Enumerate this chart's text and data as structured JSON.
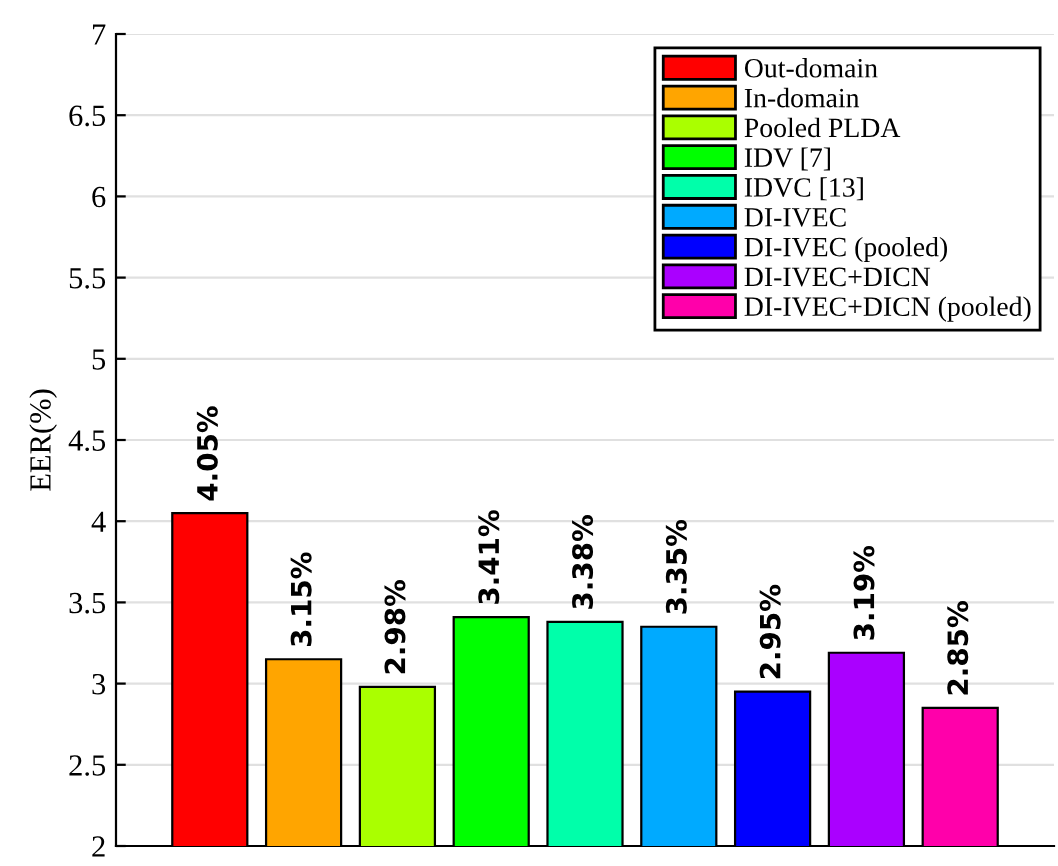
{
  "chart_data": {
    "type": "bar",
    "ylabel": "EER(%)",
    "categories": [
      null,
      null,
      null,
      null,
      null,
      null,
      null,
      null,
      null
    ],
    "series": [
      {
        "name": "Out-domain",
        "color": "#ff0000",
        "values": [
          4.05,
          null,
          null,
          null,
          null,
          null,
          null,
          null,
          null
        ],
        "value_labels": [
          "4.05%",
          null,
          null,
          null,
          null,
          null,
          null,
          null,
          null
        ]
      },
      {
        "name": "In-domain",
        "color": "#ffa500",
        "values": [
          null,
          3.15,
          null,
          null,
          null,
          null,
          null,
          null,
          null
        ],
        "value_labels": [
          null,
          "3.15%",
          null,
          null,
          null,
          null,
          null,
          null,
          null
        ]
      },
      {
        "name": "Pooled PLDA",
        "color": "#aaff00",
        "values": [
          null,
          null,
          2.98,
          null,
          null,
          null,
          null,
          null,
          null
        ],
        "value_labels": [
          null,
          null,
          "2.98%",
          null,
          null,
          null,
          null,
          null,
          null
        ]
      },
      {
        "name": "IDV [7]",
        "color": "#00ff00",
        "values": [
          null,
          null,
          null,
          3.41,
          null,
          null,
          null,
          null,
          null
        ],
        "value_labels": [
          null,
          null,
          null,
          "3.41%",
          null,
          null,
          null,
          null,
          null
        ]
      },
      {
        "name": "IDVC [13]",
        "color": "#00ffaa",
        "values": [
          null,
          null,
          null,
          null,
          3.38,
          null,
          null,
          null,
          null
        ],
        "value_labels": [
          null,
          null,
          null,
          null,
          "3.38%",
          null,
          null,
          null,
          null
        ]
      },
      {
        "name": "DI-IVEC",
        "color": "#00aaff",
        "values": [
          null,
          null,
          null,
          null,
          null,
          3.35,
          null,
          null,
          null
        ],
        "value_labels": [
          null,
          null,
          null,
          null,
          null,
          "3.35%",
          null,
          null,
          null
        ]
      },
      {
        "name": "DI-IVEC (pooled)",
        "color": "#0000ff",
        "values": [
          null,
          null,
          null,
          null,
          null,
          null,
          2.95,
          null,
          null
        ],
        "value_labels": [
          null,
          null,
          null,
          null,
          null,
          null,
          "2.95%",
          null,
          null
        ]
      },
      {
        "name": "DI-IVEC+DICN",
        "color": "#aa00ff",
        "values": [
          null,
          null,
          null,
          null,
          null,
          null,
          null,
          3.19,
          null
        ],
        "value_labels": [
          null,
          null,
          null,
          null,
          null,
          null,
          null,
          "3.19%",
          null
        ]
      },
      {
        "name": "DI-IVEC+DICN (pooled)",
        "color": "#ff00aa",
        "values": [
          null,
          null,
          null,
          null,
          null,
          null,
          null,
          null,
          2.85
        ],
        "value_labels": [
          null,
          null,
          null,
          null,
          null,
          null,
          null,
          null,
          "2.85%"
        ]
      }
    ],
    "ylim": [
      2,
      7
    ],
    "yticks": [
      2,
      2.5,
      3,
      3.5,
      4,
      4.5,
      5,
      5.5,
      6,
      6.5,
      7
    ],
    "grid": "y",
    "legend": "top right"
  }
}
